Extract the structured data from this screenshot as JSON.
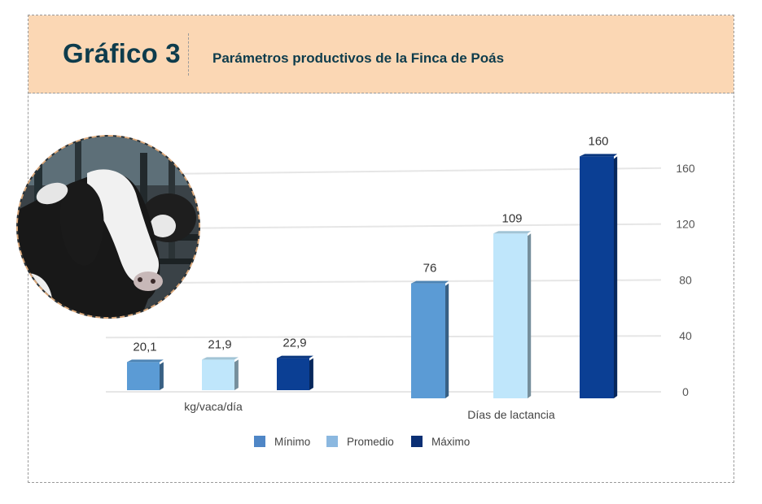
{
  "header": {
    "title": "Gráfico 3",
    "subtitle": "Parámetros productivos de la Finca de Poás"
  },
  "chart_data": {
    "type": "bar",
    "title": "Parámetros productivos de la Finca de Poás",
    "ylim": [
      0,
      160
    ],
    "yticks": [
      0,
      40,
      80,
      120,
      160
    ],
    "grid": true,
    "legend_position": "bottom",
    "groups": [
      {
        "label": "kg/vaca/día",
        "values": [
          20.1,
          21.9,
          22.9
        ],
        "value_labels": [
          "20,1",
          "21,9",
          "22,9"
        ]
      },
      {
        "label": "Días de lactancia",
        "values": [
          76,
          109,
          160
        ],
        "value_labels": [
          "76",
          "109",
          "160"
        ]
      }
    ],
    "series": [
      {
        "name": "Mínimo",
        "color": "#5b9bd5"
      },
      {
        "name": "Promedio",
        "color": "#bfe6fb"
      },
      {
        "name": "Máximo",
        "color": "#0b3f94"
      }
    ]
  }
}
